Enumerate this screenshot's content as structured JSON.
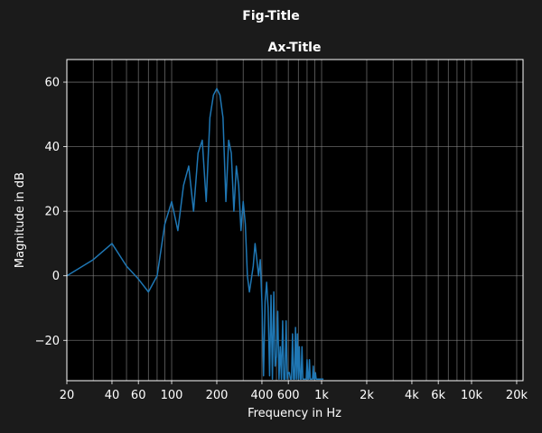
{
  "figure": {
    "title": "Fig-Title",
    "background": "#1b1b1b",
    "text_color": "#ffffff"
  },
  "chart_data": {
    "type": "line",
    "title": "Ax-Title",
    "xlabel": "Frequency in Hz",
    "ylabel": "Magnitude in dB",
    "xscale": "log",
    "xlim": [
      20,
      22050
    ],
    "ylim": [
      -32.5,
      67
    ],
    "grid": true,
    "line_color": "#1f77b4",
    "axes_face": "#000000",
    "grid_color": "#8a8a8a",
    "x_ticks": [
      {
        "value": 20,
        "label": "20"
      },
      {
        "value": 40,
        "label": "40"
      },
      {
        "value": 60,
        "label": "60"
      },
      {
        "value": 100,
        "label": "100"
      },
      {
        "value": 200,
        "label": "200"
      },
      {
        "value": 400,
        "label": "400"
      },
      {
        "value": 600,
        "label": "600"
      },
      {
        "value": 1000,
        "label": "1k"
      },
      {
        "value": 2000,
        "label": "2k"
      },
      {
        "value": 4000,
        "label": "4k"
      },
      {
        "value": 6000,
        "label": "6k"
      },
      {
        "value": 10000,
        "label": "10k"
      },
      {
        "value": 20000,
        "label": "20k"
      }
    ],
    "y_ticks": [
      {
        "value": 60,
        "label": "60"
      },
      {
        "value": 40,
        "label": "40"
      },
      {
        "value": 20,
        "label": "20"
      },
      {
        "value": 0,
        "label": "0"
      },
      {
        "value": -20,
        "label": "−20"
      }
    ],
    "x_gridlines": [
      30,
      40,
      50,
      60,
      70,
      80,
      90,
      100,
      200,
      300,
      400,
      500,
      600,
      700,
      800,
      900,
      1000,
      2000,
      3000,
      4000,
      5000,
      6000,
      7000,
      8000,
      9000,
      10000,
      20000
    ],
    "y_gridlines": [
      -20,
      0,
      20,
      40,
      60
    ],
    "series": [
      {
        "x": [
          20,
          30,
          40,
          50,
          60,
          70,
          80,
          90,
          100,
          110,
          120,
          130,
          140,
          150,
          160,
          170,
          180,
          190,
          200,
          210,
          220,
          230,
          240,
          250,
          260,
          270,
          280,
          290,
          300,
          310,
          320,
          330,
          340,
          350,
          360,
          370,
          380,
          390,
          400,
          410,
          420,
          430,
          440,
          450,
          460,
          470,
          480,
          490,
          500,
          510,
          520,
          530,
          540,
          550,
          560,
          570,
          580,
          590,
          600,
          610,
          620,
          630,
          640,
          650,
          660,
          670,
          680,
          690,
          700,
          710,
          720,
          730,
          740,
          750,
          760,
          770,
          780,
          790,
          800,
          810,
          820,
          830,
          840,
          850,
          860,
          870,
          880,
          890,
          900,
          910,
          920,
          930,
          940,
          950,
          960,
          970,
          980,
          990,
          1000,
          1010,
          1020,
          1030
        ],
        "y": [
          0,
          5,
          10,
          3,
          -1,
          -5,
          0,
          16,
          23,
          14,
          28,
          34,
          20,
          38,
          42,
          23,
          49,
          56,
          58,
          56,
          49,
          23,
          42,
          38,
          20,
          34,
          28,
          14,
          23,
          16,
          0,
          -5,
          -1,
          3,
          10,
          5,
          0,
          5,
          -8,
          -31,
          -8,
          -2,
          -10,
          -31,
          -6,
          -32,
          -5,
          -28,
          -25,
          -11,
          -32,
          -22,
          -32,
          -14,
          -32,
          -32,
          -14,
          -32,
          -30,
          -30,
          -32,
          -32,
          -18,
          -32,
          -32,
          -16,
          -32,
          -18,
          -32,
          -22,
          -32,
          -32,
          -22,
          -32,
          -32,
          -32,
          -32,
          -32,
          -26,
          -32,
          -32,
          -26,
          -32,
          -32,
          -32,
          -32,
          -28,
          -32,
          -32,
          -30,
          -32,
          -32,
          -32,
          -32,
          -32,
          -32,
          -32,
          -32,
          -32,
          -32,
          -32,
          -32
        ]
      }
    ]
  }
}
